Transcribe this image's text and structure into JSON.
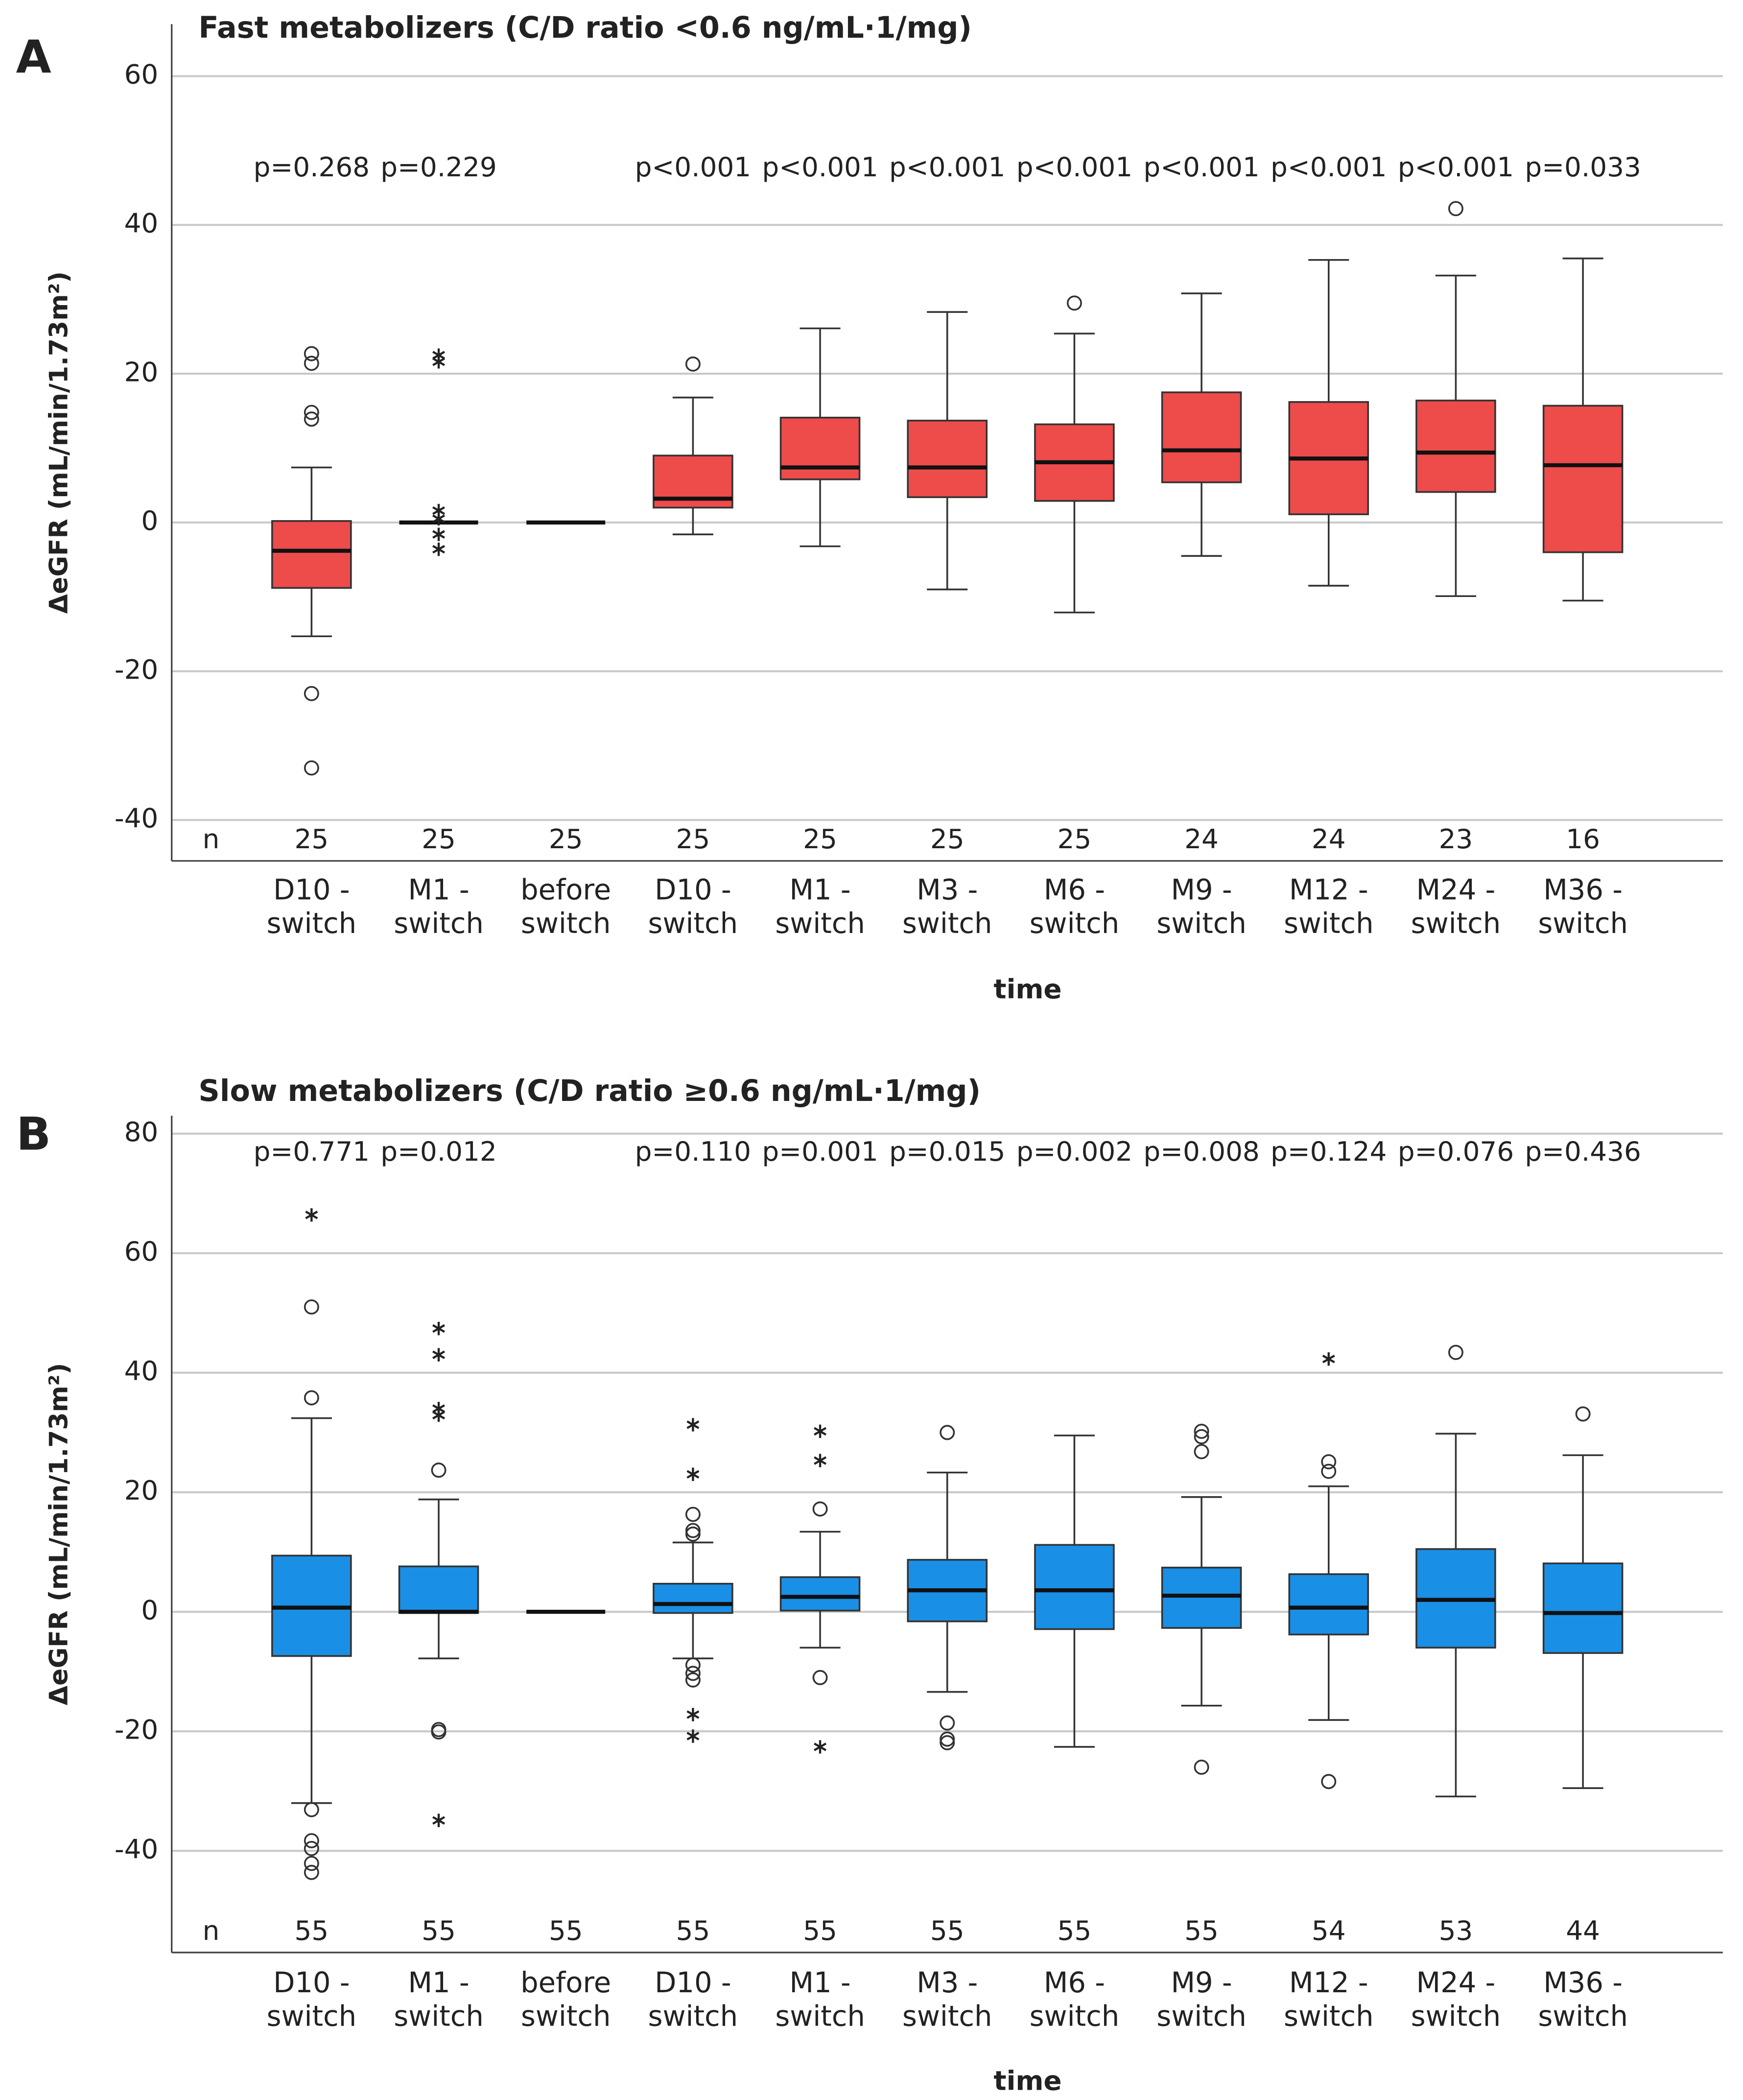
{
  "chart_data": [
    {
      "type": "box",
      "panel_label": "A",
      "title": "Fast metabolizers (C/D ratio <0.6 ng/mL·1/mg)",
      "y_label": "ΔeGFR (mL/min/1.73m²)",
      "x_label": "time",
      "color": "#ee4b4b",
      "grid": true,
      "ylim": [
        -45.5,
        67
      ],
      "yticks": [
        -40,
        -20,
        0,
        20,
        40,
        60
      ],
      "categories": [
        [
          "D10 -",
          "switch"
        ],
        [
          "M1 -",
          "switch"
        ],
        [
          "before",
          "switch"
        ],
        [
          "D10 -",
          "switch"
        ],
        [
          "M1 -",
          "switch"
        ],
        [
          "M3 -",
          "switch"
        ],
        [
          "M6 -",
          "switch"
        ],
        [
          "M9 -",
          "switch"
        ],
        [
          "M12 -",
          "switch"
        ],
        [
          "M24 -",
          "switch"
        ],
        [
          "M36 -",
          "switch"
        ]
      ],
      "p_values": [
        "p=0.268",
        "p=0.229",
        null,
        "p<0.001",
        "p<0.001",
        "p<0.001",
        "p<0.001",
        "p<0.001",
        "p<0.001",
        "p<0.001",
        "p=0.033"
      ],
      "n_label": "n",
      "n_color": "#ff0000",
      "n": [
        25,
        25,
        25,
        25,
        25,
        25,
        25,
        24,
        24,
        23,
        16
      ],
      "boxes": [
        {
          "whisker_low": -15.3,
          "q1": -8.8,
          "median": -3.8,
          "q3": 0.2,
          "whisker_high": 7.4,
          "outliers": [
            22.7,
            21.4,
            14.8,
            13.9,
            -23,
            -33
          ],
          "extremes": []
        },
        {
          "whisker_low": 0,
          "q1": 0,
          "median": 0,
          "q3": 0,
          "whisker_high": 0,
          "outliers": [],
          "extremes": [
            22.5,
            21.6,
            1.6,
            0.5,
            -1.6,
            -3.6
          ]
        },
        {
          "whisker_low": 0,
          "q1": 0,
          "median": 0,
          "q3": 0,
          "whisker_high": 0,
          "outliers": [],
          "extremes": []
        },
        {
          "whisker_low": -1.6,
          "q1": 2.0,
          "median": 3.2,
          "q3": 9.0,
          "whisker_high": 16.8,
          "outliers": [
            21.3
          ],
          "extremes": []
        },
        {
          "whisker_low": -3.2,
          "q1": 5.8,
          "median": 7.4,
          "q3": 14.1,
          "whisker_high": 26.1,
          "outliers": [],
          "extremes": []
        },
        {
          "whisker_low": -9.0,
          "q1": 3.4,
          "median": 7.4,
          "q3": 13.7,
          "whisker_high": 28.3,
          "outliers": [],
          "extremes": []
        },
        {
          "whisker_low": -12.1,
          "q1": 2.9,
          "median": 8.1,
          "q3": 13.2,
          "whisker_high": 25.4,
          "outliers": [
            29.5
          ],
          "extremes": []
        },
        {
          "whisker_low": -4.5,
          "q1": 5.4,
          "median": 9.7,
          "q3": 17.5,
          "whisker_high": 30.8,
          "outliers": [],
          "extremes": []
        },
        {
          "whisker_low": -8.5,
          "q1": 1.1,
          "median": 8.6,
          "q3": 16.2,
          "whisker_high": 35.3,
          "outliers": [],
          "extremes": []
        },
        {
          "whisker_low": -9.9,
          "q1": 4.1,
          "median": 9.4,
          "q3": 16.4,
          "whisker_high": 33.2,
          "outliers": [
            42.2
          ],
          "extremes": []
        },
        {
          "whisker_low": -10.5,
          "q1": -4.0,
          "median": 7.7,
          "q3": 15.7,
          "whisker_high": 35.5,
          "outliers": [],
          "extremes": []
        }
      ]
    },
    {
      "type": "box",
      "panel_label": "B",
      "title": "Slow metabolizers (C/D ratio ≥0.6 ng/mL·1/mg)",
      "y_label": "ΔeGFR (mL/min/1.73m²)",
      "x_label": "time",
      "color": "#1a8fe6",
      "grid": true,
      "ylim": [
        -57,
        83
      ],
      "yticks": [
        -40,
        -20,
        0,
        20,
        40,
        60,
        80
      ],
      "categories": [
        [
          "D10 -",
          "switch"
        ],
        [
          "M1 -",
          "switch"
        ],
        [
          "before",
          "switch"
        ],
        [
          "D10 -",
          "switch"
        ],
        [
          "M1 -",
          "switch"
        ],
        [
          "M3 -",
          "switch"
        ],
        [
          "M6 -",
          "switch"
        ],
        [
          "M9 -",
          "switch"
        ],
        [
          "M12 -",
          "switch"
        ],
        [
          "M24 -",
          "switch"
        ],
        [
          "M36 -",
          "switch"
        ]
      ],
      "p_values": [
        "p=0.771",
        "p=0.012",
        null,
        "p=0.110",
        "p=0.001",
        "p=0.015",
        "p=0.002",
        "p=0.008",
        "p=0.124",
        "p=0.076",
        "p=0.436"
      ],
      "n_label": "n",
      "n_color": "#1f6fc0",
      "n": [
        55,
        55,
        55,
        55,
        55,
        55,
        55,
        55,
        54,
        53,
        44
      ],
      "boxes": [
        {
          "whisker_low": -32,
          "q1": -7.4,
          "median": 0.7,
          "q3": 9.4,
          "whisker_high": 32.4,
          "outliers": [
            51,
            35.8,
            -33.1,
            -38.3,
            -39.6,
            -42.1,
            -43.6
          ],
          "extremes": [
            66.4
          ]
        },
        {
          "whisker_low": -7.8,
          "q1": -0.2,
          "median": 0,
          "q3": 7.6,
          "whisker_high": 18.8,
          "outliers": [
            23.7,
            -19.7,
            -20.1
          ],
          "extremes": [
            47.4,
            43,
            34,
            32.9,
            -34.9
          ]
        },
        {
          "whisker_low": 0,
          "q1": 0,
          "median": 0,
          "q3": 0,
          "whisker_high": 0,
          "outliers": [],
          "extremes": []
        },
        {
          "whisker_low": -7.8,
          "q1": -0.2,
          "median": 1.3,
          "q3": 4.7,
          "whisker_high": 11.6,
          "outliers": [
            16.3,
            13.6,
            13.0,
            -8.9,
            -10.3,
            -11.4
          ],
          "extremes": [
            31.3,
            23,
            -17.2,
            -20.8
          ]
        },
        {
          "whisker_low": -6.0,
          "q1": 0.2,
          "median": 2.5,
          "q3": 5.8,
          "whisker_high": 13.4,
          "outliers": [
            17.2,
            -11
          ],
          "extremes": [
            30.2,
            25.3,
            -22.6
          ]
        },
        {
          "whisker_low": -13.4,
          "q1": -1.6,
          "median": 3.6,
          "q3": 8.7,
          "whisker_high": 23.3,
          "outliers": [
            30,
            -18.6,
            -21.3,
            -21.9
          ],
          "extremes": []
        },
        {
          "whisker_low": -22.6,
          "q1": -2.9,
          "median": 3.6,
          "q3": 11.2,
          "whisker_high": 29.5,
          "outliers": [],
          "extremes": []
        },
        {
          "whisker_low": -15.7,
          "q1": -2.7,
          "median": 2.7,
          "q3": 7.4,
          "whisker_high": 19.2,
          "outliers": [
            30.2,
            29.3,
            26.8,
            -26
          ],
          "extremes": []
        },
        {
          "whisker_low": -18.1,
          "q1": -3.8,
          "median": 0.7,
          "q3": 6.3,
          "whisker_high": 21.0,
          "outliers": [
            25.1,
            23.5,
            -28.4
          ],
          "extremes": [
            42.3
          ]
        },
        {
          "whisker_low": -30.9,
          "q1": -6.0,
          "median": 2.0,
          "q3": 10.5,
          "whisker_high": 29.8,
          "outliers": [
            43.4
          ],
          "extremes": []
        },
        {
          "whisker_low": -29.5,
          "q1": -6.9,
          "median": -0.2,
          "q3": 8.1,
          "whisker_high": 26.2,
          "outliers": [
            33.1
          ],
          "extremes": []
        }
      ]
    }
  ]
}
